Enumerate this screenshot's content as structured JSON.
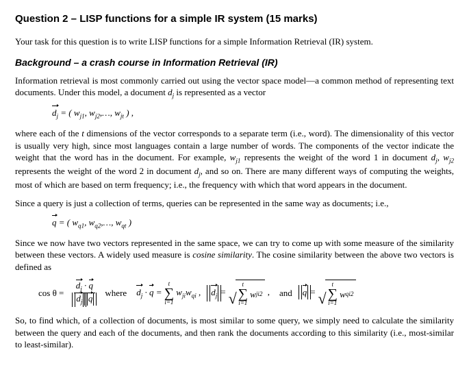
{
  "title": "Question 2 – LISP functions for a simple IR system (15 marks)",
  "intro": "Your task for this question is to write LISP functions for a simple Information Retrieval (IR) system.",
  "bg_header": "Background  – a crash course in Information Retrieval (IR)",
  "p1a": "Information retrieval is most commonly carried out using the vector space model—a common method of representing text documents. Under this model, a document ",
  "p1b": " is represented as a vector",
  "f1_lhs": "d",
  "f1_sub": "j",
  "f1_rhs": " = ( w",
  "f1_s1": "j1",
  "f1_c1": ", w",
  "f1_s2": "j2",
  "f1_c2": ",…, w",
  "f1_s3": "jt",
  "f1_end": " ) ,",
  "p2a": "where each of the ",
  "p2_t": "t",
  "p2b": " dimensions of the vector corresponds to a separate term (i.e., word). The dimensionality of this vector is usually very high, since most languages contain a large number of words. The components of the vector indicate the weight that the word has in the document. For example, ",
  "p2_w1": "w",
  "p2_w1s": "j1",
  "p2c": " represents the weight of the word 1 in document ",
  "p2_d1": "d",
  "p2_d1s": "j",
  "p2d": ", ",
  "p2_w2": "w",
  "p2_w2s": "j2",
  "p2e": " represents the weight of the word 2 in document ",
  "p2_d2": "d",
  "p2_d2s": "j",
  "p2f": ", and so on. There are many different ways of computing the weights, most of which are based on term frequency; i.e., the frequency with which that word appears in the document.",
  "p3": "Since a query is just a collection of terms, queries can be represented in the same way as documents; i.e.,",
  "f2_lhs": "q",
  "f2_rhs": " = ( w",
  "f2_s1": "q1",
  "f2_c1": ", w",
  "f2_s2": "q2",
  "f2_c2": ",…, w",
  "f2_s3": "qt",
  "f2_end": " )",
  "p4a": "Since we now have two vectors represented in the same space, we can try to come up with some measure of the similarity between these vectors. A widely used measure is ",
  "p4_cos": "cosine similarity",
  "p4b": ". The cosine similarity between the above two vectors is defined as",
  "eq_cos": "cos θ =",
  "eq_where": "where",
  "eq_dot": " · ",
  "eq_eq": " = ",
  "eq_comma": " ,",
  "eq_and": "and",
  "sum_top": "t",
  "sum_bot": "i=1",
  "w": "w",
  "sub_ji": "ji",
  "sub_qi": "qi",
  "d": "d",
  "j": "j",
  "q": "q",
  "sq": "2",
  "p5": "So, to find which, of a collection of documents, is most similar to some query, we simply need to calculate the similarity between the query and each of the documents, and then rank the documents according to this similarity (i.e., most-similar to least-similar)."
}
